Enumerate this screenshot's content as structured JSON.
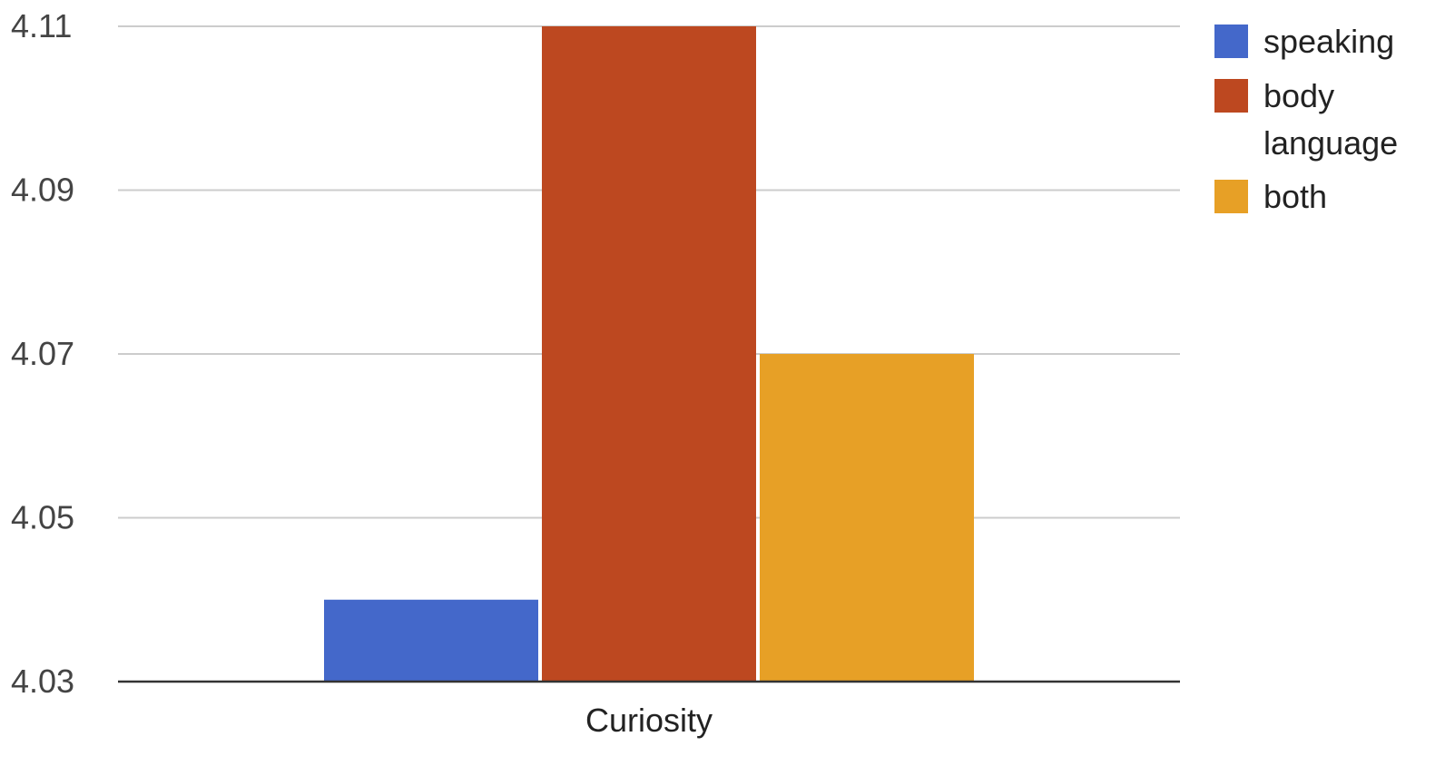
{
  "chart_data": {
    "type": "bar",
    "categories": [
      "Curiosity"
    ],
    "series": [
      {
        "name": "speaking",
        "values": [
          4.04
        ],
        "color": "#4468ca"
      },
      {
        "name": "body language",
        "values": [
          4.11
        ],
        "color": "#bd4820"
      },
      {
        "name": "both",
        "values": [
          4.07
        ],
        "color": "#e7a026"
      }
    ],
    "yticks": [
      "4.03",
      "4.05",
      "4.07",
      "4.09",
      "4.11"
    ],
    "ylim": [
      4.03,
      4.11
    ],
    "grid": true,
    "legend_position": "right",
    "gridline_color": "#cccccc",
    "baseline_color": "#333333"
  }
}
